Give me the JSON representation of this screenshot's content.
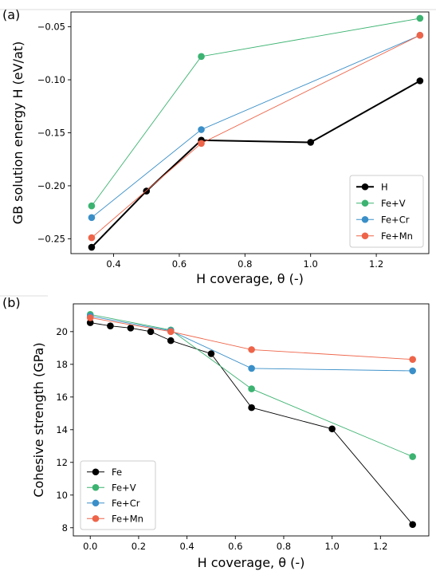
{
  "chart_data": [
    {
      "type": "line",
      "panel_label": "(a)",
      "xlabel": "H coverage, θ (-)",
      "ylabel": "GB solution energy H (eV/at)",
      "xlim": [
        0.27,
        1.36
      ],
      "ylim": [
        -0.264,
        -0.036
      ],
      "xticks": [
        0.4,
        0.6,
        0.8,
        1.0,
        1.2
      ],
      "xtick_labels": [
        "0.4",
        "0.6",
        "0.8",
        "1.0",
        "1.2"
      ],
      "yticks": [
        -0.25,
        -0.2,
        -0.15,
        -0.1,
        -0.05
      ],
      "ytick_labels": [
        "−0.25",
        "−0.20",
        "−0.15",
        "−0.10",
        "−0.05"
      ],
      "legend_position": "lower-right",
      "series": [
        {
          "name": "H",
          "color": "#000000",
          "thick": true,
          "x": [
            0.333,
            0.5,
            0.667,
            1.0,
            1.333
          ],
          "y": [
            -0.258,
            -0.205,
            -0.157,
            -0.159,
            -0.101
          ]
        },
        {
          "name": "Fe+V",
          "color": "#3cb371",
          "thick": false,
          "x": [
            0.333,
            0.667,
            1.333
          ],
          "y": [
            -0.219,
            -0.078,
            -0.042
          ]
        },
        {
          "name": "Fe+Cr",
          "color": "#3a8fc8",
          "thick": false,
          "x": [
            0.333,
            0.667,
            1.333
          ],
          "y": [
            -0.23,
            -0.147,
            -0.058
          ]
        },
        {
          "name": "Fe+Mn",
          "color": "#ee6449",
          "thick": false,
          "x": [
            0.333,
            0.667,
            1.333
          ],
          "y": [
            -0.249,
            -0.16,
            -0.058
          ]
        }
      ]
    },
    {
      "type": "line",
      "panel_label": "(b)",
      "xlabel": "H coverage, θ (-)",
      "ylabel": "Cohesive strength (GPa)",
      "xlim": [
        -0.07,
        1.4
      ],
      "ylim": [
        7.5,
        21.7
      ],
      "xticks": [
        0.0,
        0.2,
        0.4,
        0.6,
        0.8,
        1.0,
        1.2
      ],
      "xtick_labels": [
        "0.0",
        "0.2",
        "0.4",
        "0.6",
        "0.8",
        "1.0",
        "1.2"
      ],
      "yticks": [
        8,
        10,
        12,
        14,
        16,
        18,
        20
      ],
      "ytick_labels": [
        "8",
        "10",
        "12",
        "14",
        "16",
        "18",
        "20"
      ],
      "legend_position": "lower-left",
      "series": [
        {
          "name": "Fe",
          "color": "#000000",
          "thick": false,
          "x": [
            0.0,
            0.083,
            0.167,
            0.25,
            0.333,
            0.5,
            0.667,
            1.0,
            1.333
          ],
          "y": [
            20.55,
            20.35,
            20.22,
            20.0,
            19.45,
            18.65,
            15.35,
            14.05,
            8.2
          ]
        },
        {
          "name": "Fe+V",
          "color": "#3cb371",
          "thick": false,
          "x": [
            0.0,
            0.333,
            0.667,
            1.333
          ],
          "y": [
            21.05,
            20.1,
            16.5,
            12.35
          ]
        },
        {
          "name": "Fe+Cr",
          "color": "#3a8fc8",
          "thick": false,
          "x": [
            0.0,
            0.333,
            0.667,
            1.333
          ],
          "y": [
            20.95,
            20.05,
            17.75,
            17.6
          ]
        },
        {
          "name": "Fe+Mn",
          "color": "#ee6449",
          "thick": false,
          "x": [
            0.0,
            0.333,
            0.667,
            1.333
          ],
          "y": [
            20.85,
            20.0,
            18.9,
            18.3
          ]
        }
      ]
    }
  ]
}
